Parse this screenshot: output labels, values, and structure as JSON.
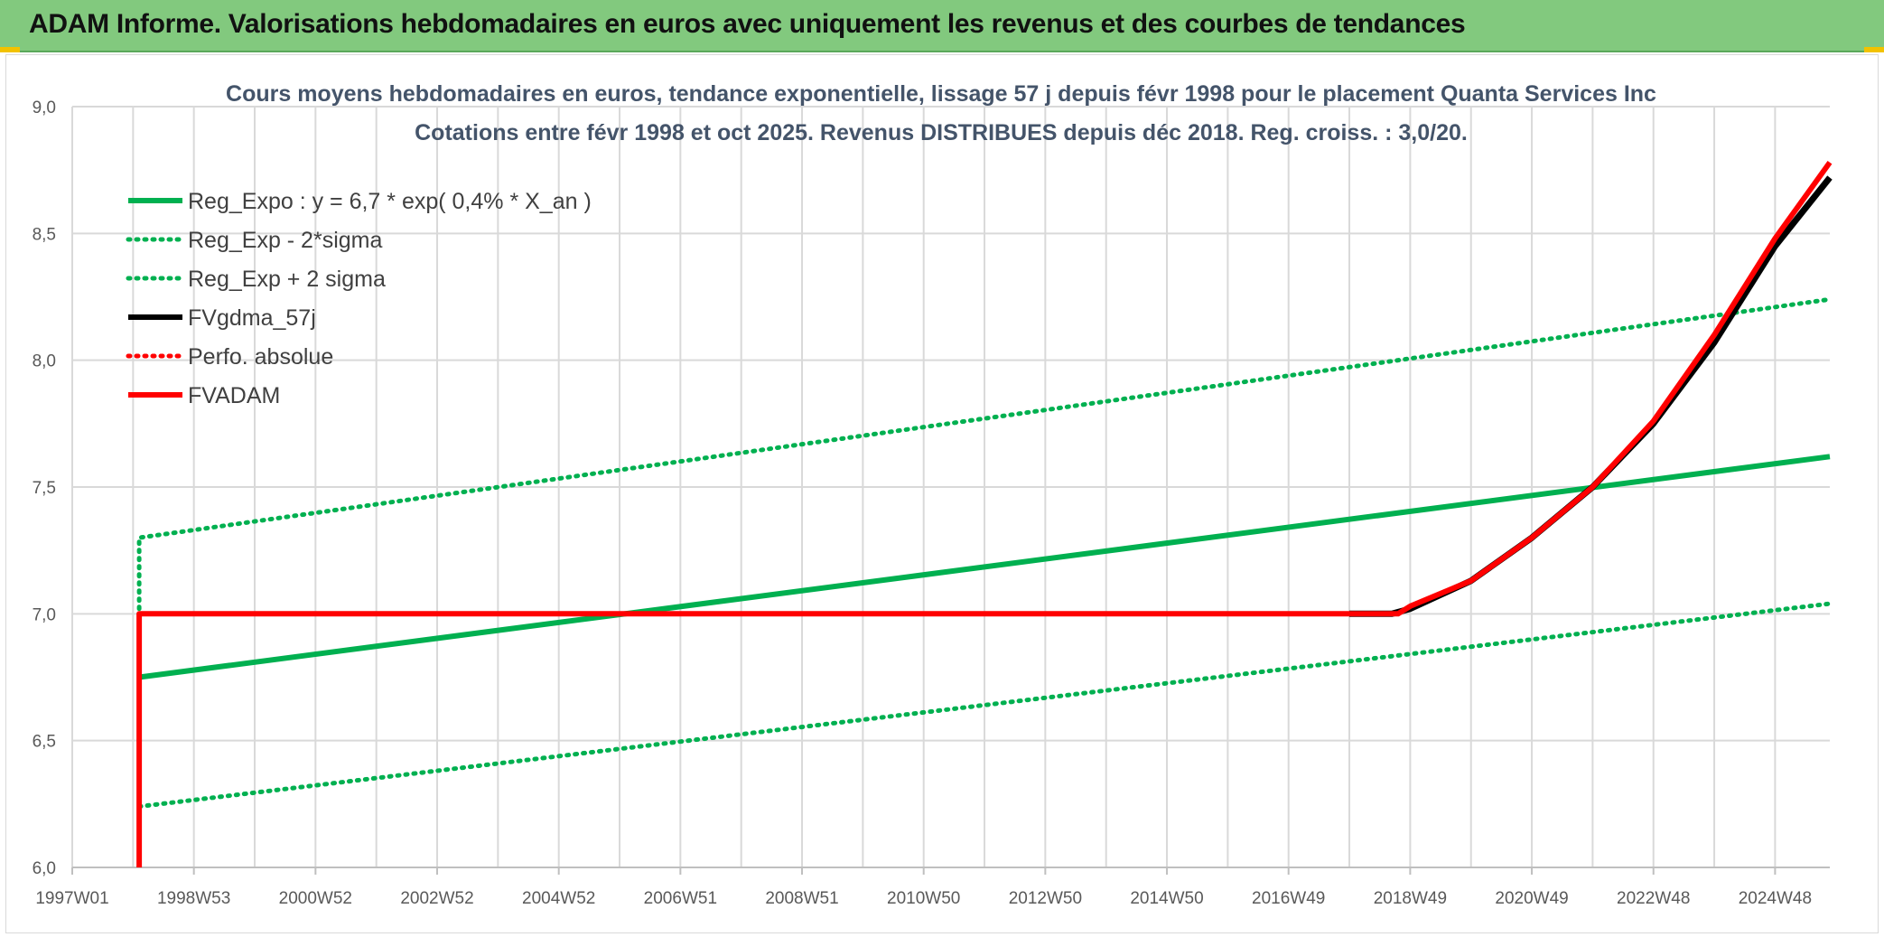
{
  "header": {
    "title": "ADAM Informe. Valorisations hebdomadaires en euros avec uniquement les revenus et des courbes de tendances"
  },
  "colors": {
    "green": "#00b050",
    "red": "#ff0000",
    "black": "#000000",
    "grid": "#d9d9d9",
    "banner": "#82c97e"
  },
  "chart_data": {
    "type": "line",
    "title": "Cours moyens hebdomadaires en euros, tendance exponentielle, lissage 57 j depuis févr 1998 pour le placement Quanta Services Inc",
    "subtitle": "Cotations entre févr 1998 et oct 2025. Revenus DISTRIBUES depuis déc 2018. Reg. croiss. : 3,0/20.",
    "xlabel": "",
    "ylabel": "",
    "xlim": [
      1997.0,
      2025.9
    ],
    "ylim": [
      6.0,
      9.0
    ],
    "x_ticks": [
      {
        "label": "1997W01",
        "x": 1997.0
      },
      {
        "label": "1998W53",
        "x": 1999.0
      },
      {
        "label": "2000W52",
        "x": 2001.0
      },
      {
        "label": "2002W52",
        "x": 2003.0
      },
      {
        "label": "2004W52",
        "x": 2005.0
      },
      {
        "label": "2006W51",
        "x": 2007.0
      },
      {
        "label": "2008W51",
        "x": 2009.0
      },
      {
        "label": "2010W50",
        "x": 2011.0
      },
      {
        "label": "2012W50",
        "x": 2013.0
      },
      {
        "label": "2014W50",
        "x": 2015.0
      },
      {
        "label": "2016W49",
        "x": 2017.0
      },
      {
        "label": "2018W49",
        "x": 2019.0
      },
      {
        "label": "2020W49",
        "x": 2021.0
      },
      {
        "label": "2022W48",
        "x": 2023.0
      },
      {
        "label": "2024W48",
        "x": 2025.0
      }
    ],
    "y_ticks": [
      "6,0",
      "6,5",
      "7,0",
      "7,5",
      "8,0",
      "8,5",
      "9,0"
    ],
    "grid": true,
    "legend_position": "top-left",
    "series": [
      {
        "name": "Reg_Expo : y = 6,7 * exp( 0,4% *  X_an )",
        "color": "#00b050",
        "style": "solid",
        "x": [
          1998.1,
          2025.9
        ],
        "y": [
          6.75,
          7.62
        ]
      },
      {
        "name": "Reg_Exp - 2*sigma",
        "color": "#00b050",
        "style": "dotted",
        "x": [
          1998.1,
          2025.9
        ],
        "y": [
          6.24,
          7.04
        ]
      },
      {
        "name": "Reg_Exp + 2 sigma",
        "color": "#00b050",
        "style": "dotted",
        "x": [
          1998.1,
          1998.1,
          2025.9
        ],
        "y": [
          7.02,
          7.3,
          8.24
        ]
      },
      {
        "name": "FVgdma_57j",
        "color": "#000000",
        "style": "solid",
        "x": [
          2018.0,
          2018.7,
          2019.0,
          2020.0,
          2021.0,
          2022.0,
          2023.0,
          2024.0,
          2025.0,
          2025.9
        ],
        "y": [
          7.0,
          7.0,
          7.02,
          7.13,
          7.3,
          7.5,
          7.75,
          8.07,
          8.45,
          8.72
        ]
      },
      {
        "name": "Perfo. absolue",
        "color": "#ff0000",
        "style": "dotted",
        "x": [],
        "y": []
      },
      {
        "name": "FVADAM",
        "color": "#ff0000",
        "style": "solid",
        "x": [
          1998.1,
          1998.1,
          2018.8,
          2019.0,
          2020.0,
          2021.0,
          2022.0,
          2023.0,
          2024.0,
          2025.0,
          2025.9
        ],
        "y": [
          6.0,
          7.0,
          7.0,
          7.03,
          7.13,
          7.3,
          7.5,
          7.76,
          8.1,
          8.48,
          8.78
        ]
      }
    ]
  }
}
